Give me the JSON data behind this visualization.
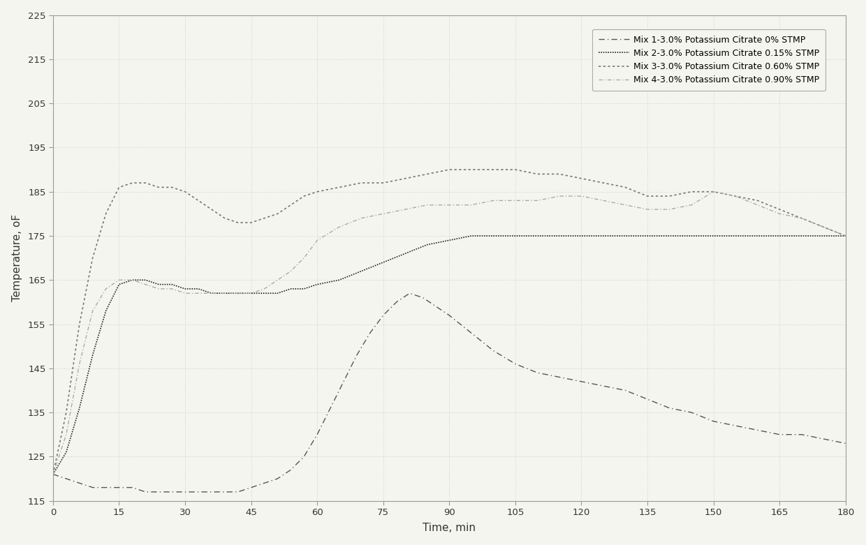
{
  "title": "",
  "xlabel": "Time, min",
  "ylabel": "Temperature, oF",
  "xlim": [
    0,
    180
  ],
  "ylim": [
    115,
    225
  ],
  "xticks": [
    0,
    15,
    30,
    45,
    60,
    75,
    90,
    105,
    120,
    135,
    150,
    165,
    180
  ],
  "yticks": [
    115,
    125,
    135,
    145,
    155,
    165,
    175,
    185,
    195,
    205,
    215,
    225
  ],
  "bg_color": "#f5f5f0",
  "plot_bg": "#f5f5f0",
  "grid_color": "#cccccc",
  "border_color": "#999999",
  "mix1": {
    "label": "Mix 1-3.0% Potassium Citrate 0% STMP",
    "color": "#555555",
    "linewidth": 1.0,
    "x": [
      0,
      3,
      6,
      9,
      12,
      15,
      18,
      21,
      24,
      27,
      30,
      33,
      36,
      39,
      42,
      45,
      48,
      51,
      54,
      57,
      60,
      63,
      66,
      69,
      72,
      75,
      78,
      81,
      84,
      87,
      90,
      95,
      100,
      105,
      110,
      115,
      120,
      125,
      130,
      135,
      140,
      145,
      150,
      155,
      160,
      165,
      170,
      175,
      180
    ],
    "y": [
      121,
      120,
      119,
      118,
      118,
      118,
      118,
      117,
      117,
      117,
      117,
      117,
      117,
      117,
      117,
      118,
      119,
      120,
      122,
      125,
      130,
      136,
      142,
      148,
      153,
      157,
      160,
      162,
      161,
      159,
      157,
      153,
      149,
      146,
      144,
      143,
      142,
      141,
      140,
      138,
      136,
      135,
      133,
      132,
      131,
      130,
      130,
      129,
      128
    ]
  },
  "mix2": {
    "label": "Mix 2-3.0% Potassium Citrate 0.15% STMP",
    "color": "#222222",
    "linewidth": 1.2,
    "x": [
      0,
      3,
      6,
      9,
      12,
      15,
      18,
      21,
      24,
      27,
      30,
      33,
      36,
      39,
      42,
      45,
      48,
      51,
      54,
      57,
      60,
      65,
      70,
      75,
      80,
      85,
      90,
      95,
      100,
      105,
      110,
      115,
      120,
      125,
      130,
      135,
      140,
      145,
      150,
      155,
      160,
      165,
      170,
      175,
      180
    ],
    "y": [
      121,
      126,
      136,
      148,
      158,
      164,
      165,
      165,
      164,
      164,
      163,
      163,
      162,
      162,
      162,
      162,
      162,
      162,
      163,
      163,
      164,
      165,
      167,
      169,
      171,
      173,
      174,
      175,
      175,
      175,
      175,
      175,
      175,
      175,
      175,
      175,
      175,
      175,
      175,
      175,
      175,
      175,
      175,
      175,
      175
    ]
  },
  "mix3": {
    "label": "Mix 3-3.0% Potassium Citrate 0.60% STMP",
    "color": "#777777",
    "linewidth": 1.2,
    "x": [
      0,
      3,
      6,
      9,
      12,
      15,
      18,
      21,
      24,
      27,
      30,
      33,
      36,
      39,
      42,
      45,
      48,
      51,
      54,
      57,
      60,
      65,
      70,
      75,
      80,
      85,
      90,
      95,
      100,
      105,
      110,
      115,
      120,
      125,
      130,
      135,
      140,
      145,
      150,
      155,
      160,
      165,
      170,
      175,
      180
    ],
    "y": [
      121,
      135,
      155,
      170,
      180,
      186,
      187,
      187,
      186,
      186,
      185,
      183,
      181,
      179,
      178,
      178,
      179,
      180,
      182,
      184,
      185,
      186,
      187,
      187,
      188,
      189,
      190,
      190,
      190,
      190,
      189,
      189,
      188,
      187,
      186,
      184,
      184,
      185,
      185,
      184,
      183,
      181,
      179,
      177,
      175
    ]
  },
  "mix4": {
    "label": "Mix 4-3.0% Potassium Citrate 0.90% STMP",
    "color": "#aaaaaa",
    "linewidth": 1.0,
    "x": [
      0,
      3,
      6,
      9,
      12,
      15,
      18,
      21,
      24,
      27,
      30,
      33,
      36,
      39,
      42,
      45,
      48,
      51,
      54,
      57,
      60,
      65,
      70,
      75,
      80,
      85,
      90,
      95,
      100,
      105,
      110,
      115,
      120,
      125,
      130,
      135,
      140,
      145,
      150,
      155,
      160,
      165,
      170,
      175,
      180
    ],
    "y": [
      121,
      130,
      146,
      158,
      163,
      165,
      165,
      164,
      163,
      163,
      162,
      162,
      162,
      162,
      162,
      162,
      163,
      165,
      167,
      170,
      174,
      177,
      179,
      180,
      181,
      182,
      182,
      182,
      183,
      183,
      183,
      184,
      184,
      183,
      182,
      181,
      181,
      182,
      185,
      184,
      182,
      180,
      179,
      177,
      175
    ]
  }
}
